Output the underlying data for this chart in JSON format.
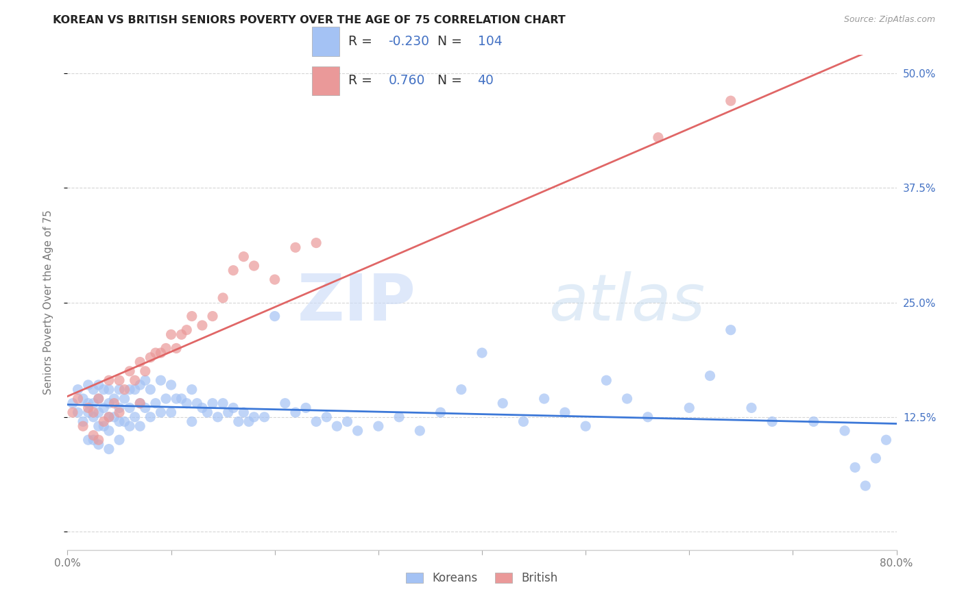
{
  "title": "KOREAN VS BRITISH SENIORS POVERTY OVER THE AGE OF 75 CORRELATION CHART",
  "source": "Source: ZipAtlas.com",
  "ylabel": "Seniors Poverty Over the Age of 75",
  "xlim": [
    0.0,
    0.8
  ],
  "ylim": [
    -0.02,
    0.52
  ],
  "yticks": [
    0.0,
    0.125,
    0.25,
    0.375,
    0.5
  ],
  "ytick_labels": [
    "",
    "12.5%",
    "25.0%",
    "37.5%",
    "50.0%"
  ],
  "korean_color": "#a4c2f4",
  "british_color": "#ea9999",
  "korean_line_color": "#3c78d8",
  "british_line_color": "#e06666",
  "legend_text_color": "#4472c4",
  "watermark_zip": "ZIP",
  "watermark_atlas": "atlas",
  "korean_R": -0.23,
  "korean_N": 104,
  "british_R": 0.76,
  "british_N": 40,
  "background_color": "#ffffff",
  "grid_color": "#cccccc",
  "korean_scatter_x": [
    0.005,
    0.01,
    0.01,
    0.015,
    0.015,
    0.02,
    0.02,
    0.02,
    0.02,
    0.025,
    0.025,
    0.025,
    0.025,
    0.03,
    0.03,
    0.03,
    0.03,
    0.03,
    0.035,
    0.035,
    0.035,
    0.04,
    0.04,
    0.04,
    0.04,
    0.04,
    0.045,
    0.045,
    0.05,
    0.05,
    0.05,
    0.05,
    0.055,
    0.055,
    0.06,
    0.06,
    0.06,
    0.065,
    0.065,
    0.07,
    0.07,
    0.07,
    0.075,
    0.075,
    0.08,
    0.08,
    0.085,
    0.09,
    0.09,
    0.095,
    0.1,
    0.1,
    0.105,
    0.11,
    0.115,
    0.12,
    0.12,
    0.125,
    0.13,
    0.135,
    0.14,
    0.145,
    0.15,
    0.155,
    0.16,
    0.165,
    0.17,
    0.175,
    0.18,
    0.19,
    0.2,
    0.21,
    0.22,
    0.23,
    0.24,
    0.25,
    0.26,
    0.27,
    0.28,
    0.3,
    0.32,
    0.34,
    0.36,
    0.38,
    0.4,
    0.42,
    0.44,
    0.46,
    0.48,
    0.5,
    0.52,
    0.54,
    0.56,
    0.6,
    0.62,
    0.64,
    0.66,
    0.68,
    0.72,
    0.75,
    0.76,
    0.77,
    0.78,
    0.79
  ],
  "korean_scatter_y": [
    0.14,
    0.155,
    0.13,
    0.145,
    0.12,
    0.16,
    0.14,
    0.13,
    0.1,
    0.155,
    0.14,
    0.125,
    0.1,
    0.16,
    0.145,
    0.13,
    0.115,
    0.095,
    0.155,
    0.135,
    0.115,
    0.155,
    0.14,
    0.125,
    0.11,
    0.09,
    0.145,
    0.125,
    0.155,
    0.135,
    0.12,
    0.1,
    0.145,
    0.12,
    0.155,
    0.135,
    0.115,
    0.155,
    0.125,
    0.16,
    0.14,
    0.115,
    0.165,
    0.135,
    0.155,
    0.125,
    0.14,
    0.165,
    0.13,
    0.145,
    0.16,
    0.13,
    0.145,
    0.145,
    0.14,
    0.155,
    0.12,
    0.14,
    0.135,
    0.13,
    0.14,
    0.125,
    0.14,
    0.13,
    0.135,
    0.12,
    0.13,
    0.12,
    0.125,
    0.125,
    0.235,
    0.14,
    0.13,
    0.135,
    0.12,
    0.125,
    0.115,
    0.12,
    0.11,
    0.115,
    0.125,
    0.11,
    0.13,
    0.155,
    0.195,
    0.14,
    0.12,
    0.145,
    0.13,
    0.115,
    0.165,
    0.145,
    0.125,
    0.135,
    0.17,
    0.22,
    0.135,
    0.12,
    0.12,
    0.11,
    0.07,
    0.05,
    0.08,
    0.1
  ],
  "british_scatter_x": [
    0.005,
    0.01,
    0.015,
    0.02,
    0.025,
    0.025,
    0.03,
    0.03,
    0.035,
    0.04,
    0.04,
    0.045,
    0.05,
    0.05,
    0.055,
    0.06,
    0.065,
    0.07,
    0.07,
    0.075,
    0.08,
    0.085,
    0.09,
    0.095,
    0.1,
    0.105,
    0.11,
    0.115,
    0.12,
    0.13,
    0.14,
    0.15,
    0.16,
    0.17,
    0.18,
    0.2,
    0.22,
    0.24,
    0.57,
    0.64
  ],
  "british_scatter_y": [
    0.13,
    0.145,
    0.115,
    0.135,
    0.13,
    0.105,
    0.145,
    0.1,
    0.12,
    0.165,
    0.125,
    0.14,
    0.165,
    0.13,
    0.155,
    0.175,
    0.165,
    0.185,
    0.14,
    0.175,
    0.19,
    0.195,
    0.195,
    0.2,
    0.215,
    0.2,
    0.215,
    0.22,
    0.235,
    0.225,
    0.235,
    0.255,
    0.285,
    0.3,
    0.29,
    0.275,
    0.31,
    0.315,
    0.43,
    0.47
  ]
}
